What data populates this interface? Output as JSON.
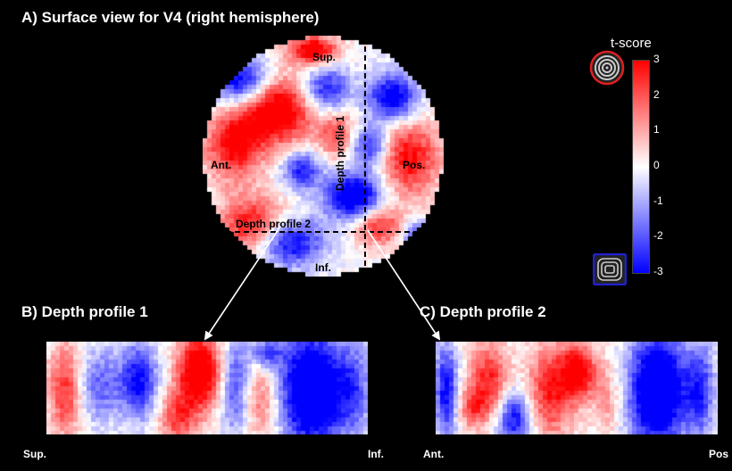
{
  "panel_a": {
    "title": "A) Surface view for V4 (right hemisphere)",
    "labels": {
      "sup": "Sup.",
      "inf": "Inf.",
      "ant": "Ant.",
      "pos": "Pos.",
      "depth1": "Depth profile 1",
      "depth2": "Depth profile 2"
    }
  },
  "panel_b": {
    "title": "B) Depth profile 1",
    "left_label": "Sup.",
    "right_label": "Inf."
  },
  "panel_c": {
    "title": "C) Depth profile 2",
    "left_label": "Ant.",
    "right_label": "Pos"
  },
  "colorbar": {
    "title": "t-score",
    "ticks": [
      "3",
      "2",
      "1",
      "0",
      "-1",
      "-2",
      "-3"
    ],
    "colors": {
      "max": "#ff0000",
      "mid": "#ffffff",
      "min": "#0000ff"
    },
    "top_icon": "concentric-circles-icon",
    "bottom_icon": "concentric-squares-icon"
  }
}
